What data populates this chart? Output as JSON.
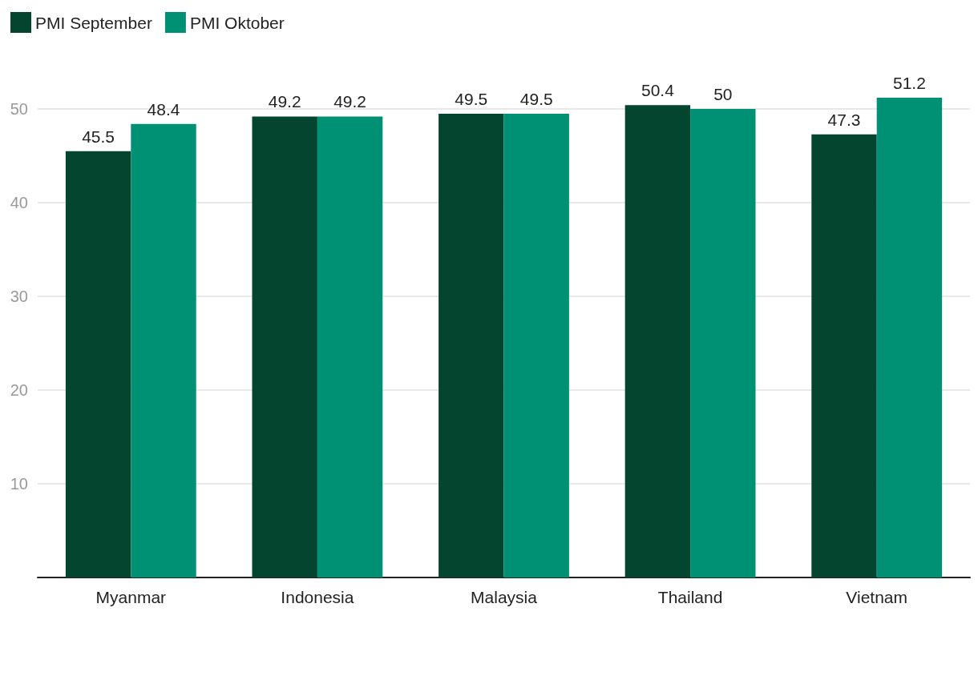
{
  "chart_data": {
    "type": "bar",
    "categories": [
      "Myanmar",
      "Indonesia",
      "Malaysia",
      "Thailand",
      "Vietnam"
    ],
    "series": [
      {
        "name": "PMI September",
        "color": "#03452f",
        "values": [
          45.5,
          49.2,
          49.5,
          50.4,
          47.3
        ]
      },
      {
        "name": "PMI Oktober",
        "color": "#009174",
        "values": [
          48.4,
          49.2,
          49.5,
          50,
          51.2
        ]
      }
    ],
    "ylim": [
      0,
      51.2
    ],
    "yticks": [
      {
        "value": 0,
        "label": null
      },
      10,
      20,
      30,
      40,
      50
    ],
    "grid": "y",
    "legend": "top left",
    "data_labels": true
  }
}
